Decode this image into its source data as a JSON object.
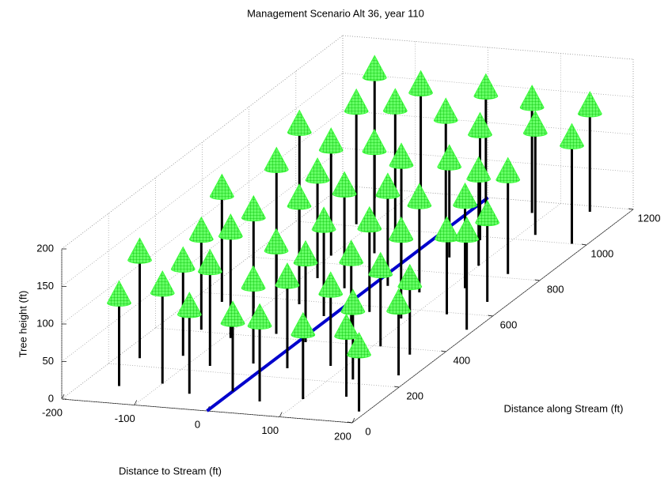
{
  "chart_data": {
    "type": "tree3d",
    "title": "Management Scenario Alt 36, year 110",
    "xlabel": "Distance to Stream (ft)",
    "ylabel": "Distance along Stream (ft)",
    "zlabel": "Tree height (ft)",
    "xlim": [
      -200,
      200
    ],
    "xticks": [
      -200,
      -100,
      0,
      100,
      200
    ],
    "ylim": [
      0,
      1200
    ],
    "yticks": [
      0,
      200,
      400,
      600,
      800,
      1000,
      1200
    ],
    "zlim": [
      0,
      200
    ],
    "zticks": [
      0,
      50,
      100,
      150,
      200
    ],
    "grid": true,
    "color": "#33ff33",
    "trunk_color": "#000000",
    "stream": {
      "color": "#0000cc",
      "x": [
        0,
        0
      ],
      "y": [
        0,
        1200
      ]
    },
    "x": [
      -150,
      -100,
      -50,
      0,
      50,
      100,
      150,
      190,
      -170,
      -120,
      -70,
      -20,
      30,
      80,
      130,
      180,
      -140,
      -90,
      -40,
      10,
      60,
      110,
      160,
      -160,
      -110,
      -60,
      -10,
      40,
      90,
      140,
      190,
      -130,
      -80,
      -30,
      20,
      70,
      120,
      170,
      -150,
      -100,
      -50,
      0,
      50,
      100,
      150,
      -120,
      -60,
      0,
      60,
      120,
      180,
      -140,
      -70,
      10,
      80,
      150
    ],
    "y": [
      90,
      120,
      80,
      110,
      70,
      100,
      130,
      60,
      240,
      270,
      230,
      260,
      250,
      280,
      220,
      260,
      410,
      380,
      420,
      390,
      430,
      400,
      370,
      560,
      540,
      580,
      530,
      570,
      550,
      590,
      520,
      700,
      720,
      680,
      710,
      690,
      730,
      670,
      860,
      840,
      870,
      830,
      880,
      850,
      820,
      1010,
      990,
      1020,
      980,
      1030,
      1000,
      1150,
      1130,
      1160,
      1140,
      1170
    ],
    "z": [
      140,
      150,
      135,
      120,
      130,
      115,
      110,
      105,
      160,
      145,
      155,
      130,
      140,
      125,
      120,
      115,
      150,
      165,
      140,
      135,
      130,
      125,
      120,
      170,
      150,
      160,
      145,
      140,
      135,
      130,
      150,
      175,
      160,
      155,
      150,
      145,
      140,
      135,
      185,
      170,
      165,
      160,
      150,
      145,
      155,
      180,
      190,
      175,
      170,
      165,
      160,
      190,
      180,
      175,
      170,
      160
    ]
  }
}
